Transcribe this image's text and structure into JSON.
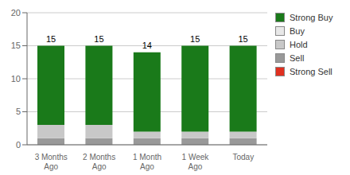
{
  "chart_data": {
    "type": "bar",
    "stacked": true,
    "categories": [
      "3 Months\nAgo",
      "2 Months\nAgo",
      "1 Month\nAgo",
      "1 Week\nAgo",
      "Today"
    ],
    "series": [
      {
        "name": "Strong Sell",
        "color": "#e03020",
        "values": [
          0,
          0,
          0,
          0,
          0
        ]
      },
      {
        "name": "Sell",
        "color": "#999999",
        "values": [
          1,
          1,
          1,
          1,
          1
        ]
      },
      {
        "name": "Hold",
        "color": "#c8c8c8",
        "values": [
          2,
          2,
          1,
          1,
          1
        ]
      },
      {
        "name": "Buy",
        "color": "#e8e8e8",
        "values": [
          0,
          0,
          0,
          0,
          0
        ]
      },
      {
        "name": "Strong Buy",
        "color": "#1a7a1a",
        "values": [
          12,
          12,
          12,
          13,
          13
        ]
      }
    ],
    "totals": [
      15,
      15,
      14,
      15,
      15
    ],
    "ylim": [
      0,
      20
    ],
    "yticks": [
      0,
      5,
      10,
      15,
      20
    ],
    "grid": true,
    "legend": "right"
  }
}
